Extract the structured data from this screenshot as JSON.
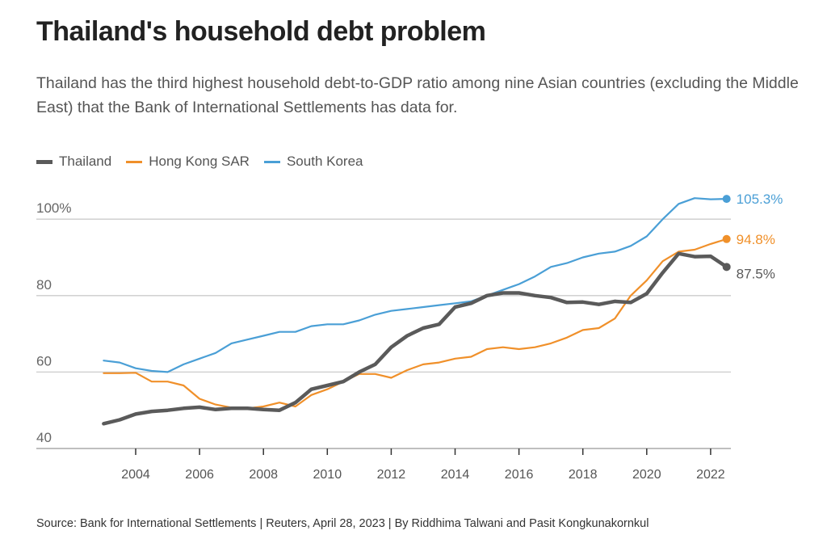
{
  "chart_data": {
    "type": "line",
    "title": "Thailand's household debt problem",
    "subtitle": "Thailand has the third highest household debt-to-GDP ratio among nine Asian countries (excluding the Middle East) that the Bank of International Settlements has data for.",
    "source": "Source: Bank for International Settlements | Reuters, April 28, 2023 | By Riddhima Talwani and Pasit Kongkunakornkul",
    "xlabel": "",
    "ylabel": "",
    "ylim": [
      40,
      107
    ],
    "xlim": [
      2001.0,
      2023.0
    ],
    "y_ticks": [
      {
        "v": 40,
        "label": "40"
      },
      {
        "v": 60,
        "label": "60"
      },
      {
        "v": 80,
        "label": "80"
      },
      {
        "v": 100,
        "label": "100%"
      }
    ],
    "x_ticks": [
      2004,
      2006,
      2008,
      2010,
      2012,
      2014,
      2016,
      2018,
      2020,
      2022
    ],
    "x_tick_labels": [
      "2004",
      "2006",
      "2008",
      "2010",
      "2012",
      "2014",
      "2016",
      "2018",
      "2020",
      "2022"
    ],
    "grid": true,
    "legend": "top-left",
    "x": [
      2003,
      2003.5,
      2004,
      2004.5,
      2005,
      2005.5,
      2006,
      2006.5,
      2007,
      2007.5,
      2008,
      2008.5,
      2009,
      2009.5,
      2010,
      2010.5,
      2011,
      2011.5,
      2012,
      2012.5,
      2013,
      2013.5,
      2014,
      2014.5,
      2015,
      2015.5,
      2016,
      2016.5,
      2017,
      2017.5,
      2018,
      2018.5,
      2019,
      2019.5,
      2020,
      2020.5,
      2021,
      2021.5,
      2022,
      2022.5
    ],
    "series": [
      {
        "name": "Thailand",
        "color": "#5a5a5a",
        "width": 4.5,
        "end_label": "87.5%",
        "values": [
          46.5,
          47.5,
          49,
          49.7,
          50,
          50.5,
          50.8,
          50.2,
          50.5,
          50.5,
          50.2,
          50,
          52,
          55.5,
          56.5,
          57.5,
          60,
          62,
          66.5,
          69.5,
          71.5,
          72.5,
          77,
          78,
          80,
          80.7,
          80.7,
          80,
          79.5,
          78.2,
          78.3,
          77.7,
          78.5,
          78.2,
          80.5,
          86,
          91,
          90.2,
          90.3,
          87.5
        ]
      },
      {
        "name": "Hong Kong SAR",
        "color": "#f0902a",
        "width": 2.2,
        "end_label": "94.8%",
        "values": [
          59.7,
          59.7,
          59.8,
          57.5,
          57.5,
          56.5,
          53,
          51.5,
          50.7,
          50.5,
          51,
          52,
          51,
          54,
          55.5,
          57.5,
          59.5,
          59.5,
          58.5,
          60.5,
          62,
          62.5,
          63.5,
          64,
          66,
          66.5,
          66,
          66.5,
          67.5,
          69,
          71,
          71.5,
          74,
          80,
          84,
          89,
          91.5,
          92,
          93.5,
          94.8
        ]
      },
      {
        "name": "South Korea",
        "color": "#4a9fd6",
        "width": 2.2,
        "end_label": "105.3%",
        "values": [
          63,
          62.5,
          61,
          60.3,
          60,
          62,
          63.5,
          65,
          67.5,
          68.5,
          69.5,
          70.5,
          70.5,
          72,
          72.5,
          72.5,
          73.5,
          75,
          76,
          76.5,
          77,
          77.5,
          78,
          78.5,
          80,
          81.5,
          83,
          85,
          87.5,
          88.5,
          90,
          91,
          91.5,
          93,
          95.5,
          100,
          104,
          105.5,
          105.2,
          105.3
        ]
      }
    ]
  }
}
